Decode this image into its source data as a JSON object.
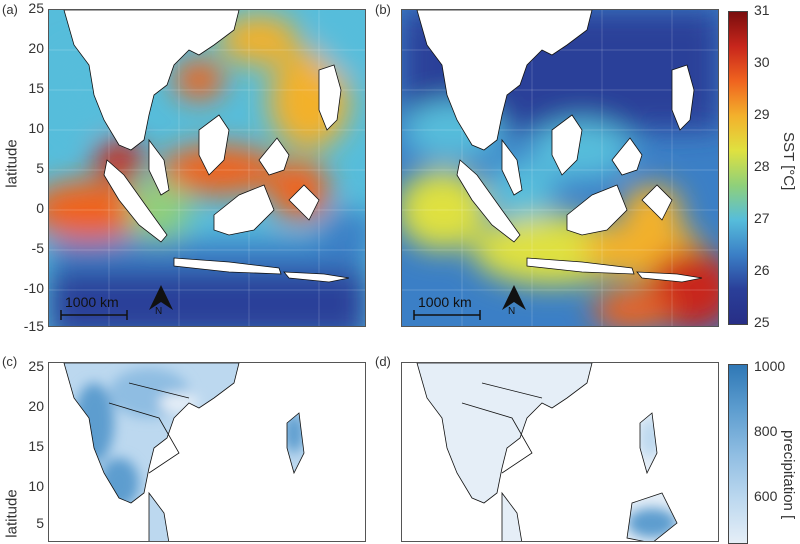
{
  "panels": {
    "a": {
      "label": "(a)"
    },
    "b": {
      "label": "(b)"
    },
    "c": {
      "label": "(c)"
    },
    "d": {
      "label": "(d)"
    }
  },
  "axes": {
    "ylabel": "latitude",
    "sst_ticks": [
      "25",
      "20",
      "15",
      "10",
      "5",
      "0",
      "-5",
      "-10",
      "-15"
    ],
    "precip_ticks": [
      "25",
      "20",
      "15",
      "10",
      "5"
    ]
  },
  "sst_colorbar": {
    "label": "SST [°C]",
    "ticks": [
      "31",
      "30",
      "29",
      "28",
      "27",
      "26",
      "25"
    ],
    "colors": [
      "#7a0d0d",
      "#c8261c",
      "#f0641f",
      "#f3b12c",
      "#dfe140",
      "#8fd07a",
      "#56bddb",
      "#3b7fc6",
      "#2a3f99",
      "#272e86"
    ]
  },
  "precip_colorbar": {
    "label": "precipitation [",
    "ticks": [
      "1000",
      "800",
      "600"
    ],
    "colors": [
      "#2f78b6",
      "#5d9dcf",
      "#8fbde2",
      "#bcd8ef",
      "#e5eef7"
    ]
  },
  "map_annotations": {
    "scale_bar_a": "1000 km",
    "scale_bar_b": "1000 km",
    "north_a": "N",
    "north_b": "N"
  }
}
